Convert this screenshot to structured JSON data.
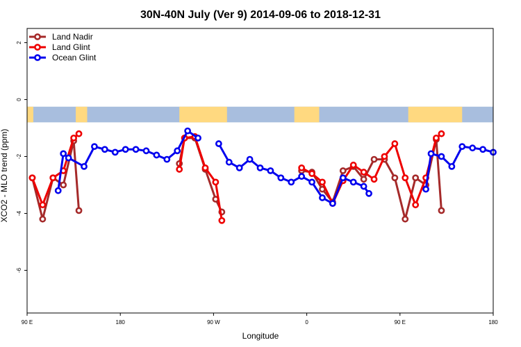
{
  "chart_data": {
    "type": "line",
    "title": "30N-40N July (Ver 9)   2014-09-06 to 2018-12-31",
    "xlabel": "Longitude",
    "ylabel": "XCO2 - MLO trend (ppm)",
    "xlim": [
      90,
      540
    ],
    "ylim": [
      -7.5,
      2.5
    ],
    "x_ticks": [
      {
        "value": 90,
        "label": "90 E"
      },
      {
        "value": 180,
        "label": "180"
      },
      {
        "value": 270,
        "label": "90 W"
      },
      {
        "value": 360,
        "label": "0"
      },
      {
        "value": 450,
        "label": "90 E"
      },
      {
        "value": 540,
        "label": "180"
      }
    ],
    "y_ticks": [
      {
        "value": 2,
        "label": "2"
      },
      {
        "value": 0,
        "label": "0"
      },
      {
        "value": -2,
        "label": "-2"
      },
      {
        "value": -4,
        "label": "-4"
      },
      {
        "value": -6,
        "label": "-6"
      }
    ],
    "legend": {
      "position": "top-left"
    },
    "grid": false,
    "land_ocean_strip": {
      "y_top": -0.25,
      "y_bottom": -0.8,
      "ocean_color": "#a8bede",
      "land_color": "#ffd980",
      "land_segments": [
        [
          90,
          96
        ],
        [
          137,
          148
        ],
        [
          237,
          283
        ],
        [
          348,
          372
        ],
        [
          458,
          510
        ]
      ]
    },
    "series": [
      {
        "name": "Land Nadir",
        "color": "#a52a2a",
        "segments": [
          [
            [
              95,
              -2.75
            ],
            [
              105,
              -4.2
            ],
            [
              115,
              -2.75
            ],
            [
              125,
              -3.0
            ],
            [
              135,
              -1.45
            ],
            [
              140,
              -3.9
            ]
          ],
          [
            [
              237,
              -2.25
            ],
            [
              242,
              -1.35
            ],
            [
              252,
              -1.35
            ],
            [
              262,
              -2.45
            ],
            [
              272,
              -3.5
            ],
            [
              278,
              -3.95
            ]
          ],
          [
            [
              355,
              -2.5
            ],
            [
              365,
              -2.55
            ],
            [
              375,
              -3.15
            ],
            [
              385,
              -3.6
            ],
            [
              395,
              -2.5
            ],
            [
              405,
              -2.35
            ],
            [
              415,
              -2.8
            ],
            [
              425,
              -2.1
            ],
            [
              435,
              -2.1
            ],
            [
              445,
              -2.75
            ],
            [
              455,
              -4.2
            ],
            [
              465,
              -2.75
            ],
            [
              475,
              -3.0
            ],
            [
              485,
              -1.4
            ],
            [
              490,
              -3.9
            ]
          ]
        ]
      },
      {
        "name": "Land Glint",
        "color": "#ee0000",
        "segments": [
          [
            [
              95,
              -2.75
            ],
            [
              105,
              -3.7
            ],
            [
              115,
              -2.75
            ],
            [
              125,
              -2.5
            ],
            [
              135,
              -1.35
            ],
            [
              140,
              -1.2
            ]
          ],
          [
            [
              237,
              -2.45
            ],
            [
              242,
              -1.35
            ],
            [
              252,
              -1.3
            ],
            [
              262,
              -2.4
            ],
            [
              272,
              -2.9
            ],
            [
              278,
              -4.25
            ]
          ],
          [
            [
              355,
              -2.4
            ],
            [
              365,
              -2.6
            ],
            [
              375,
              -2.9
            ],
            [
              385,
              -3.65
            ],
            [
              395,
              -2.85
            ],
            [
              405,
              -2.3
            ],
            [
              415,
              -2.55
            ],
            [
              425,
              -2.8
            ],
            [
              435,
              -2.0
            ],
            [
              445,
              -1.55
            ],
            [
              455,
              -2.75
            ],
            [
              465,
              -3.7
            ],
            [
              475,
              -2.75
            ],
            [
              485,
              -1.35
            ],
            [
              490,
              -1.2
            ]
          ]
        ]
      },
      {
        "name": "Ocean Glint",
        "color": "#0000ee",
        "segments": [
          [
            [
              120,
              -3.2
            ],
            [
              125,
              -1.9
            ],
            [
              130,
              -2.05
            ],
            [
              145,
              -2.35
            ],
            [
              155,
              -1.65
            ],
            [
              165,
              -1.75
            ],
            [
              175,
              -1.85
            ],
            [
              185,
              -1.75
            ],
            [
              195,
              -1.75
            ],
            [
              205,
              -1.8
            ],
            [
              215,
              -1.95
            ],
            [
              225,
              -2.1
            ],
            [
              235,
              -1.8
            ],
            [
              245,
              -1.1
            ],
            [
              255,
              -1.35
            ]
          ],
          [
            [
              275,
              -1.55
            ],
            [
              285,
              -2.2
            ],
            [
              295,
              -2.4
            ],
            [
              305,
              -2.1
            ],
            [
              315,
              -2.4
            ],
            [
              325,
              -2.5
            ],
            [
              335,
              -2.75
            ],
            [
              345,
              -2.9
            ],
            [
              355,
              -2.7
            ],
            [
              365,
              -2.9
            ],
            [
              375,
              -3.45
            ],
            [
              385,
              -3.65
            ],
            [
              395,
              -2.75
            ],
            [
              405,
              -2.9
            ],
            [
              415,
              -3.05
            ],
            [
              420,
              -3.3
            ]
          ],
          [
            [
              475,
              -3.15
            ],
            [
              480,
              -1.9
            ],
            [
              490,
              -2.0
            ],
            [
              500,
              -2.35
            ],
            [
              510,
              -1.65
            ],
            [
              520,
              -1.7
            ],
            [
              530,
              -1.75
            ],
            [
              540,
              -1.85
            ]
          ]
        ]
      }
    ]
  }
}
